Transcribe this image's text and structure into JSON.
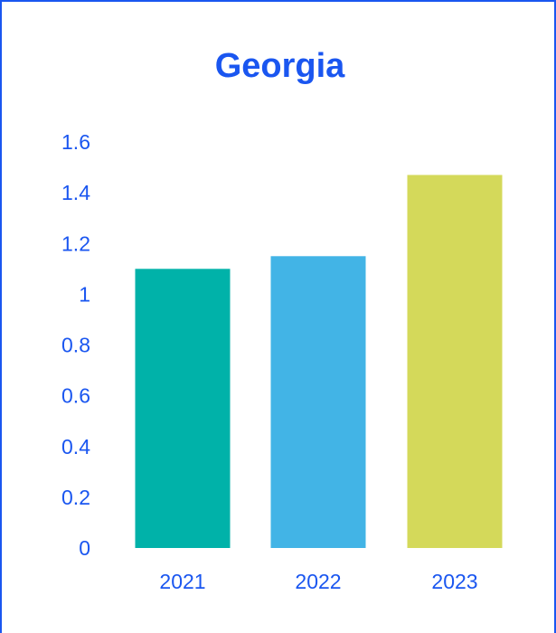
{
  "chart_data": {
    "type": "bar",
    "title": "Georgia",
    "categories": [
      "2021",
      "2022",
      "2023"
    ],
    "values": [
      1.1,
      1.15,
      1.47
    ],
    "ylim": [
      0,
      1.6
    ],
    "yticks": [
      "0",
      "0.2",
      "0.4",
      "0.6",
      "0.8",
      "1",
      "1.2",
      "1.4",
      "1.6"
    ],
    "xlabel": "",
    "ylabel": "",
    "grid": false,
    "legend": "none",
    "bar_colors": [
      "#00b2a9",
      "#42b4e6",
      "#d4d95a"
    ],
    "text_color": "#1a56f0"
  }
}
